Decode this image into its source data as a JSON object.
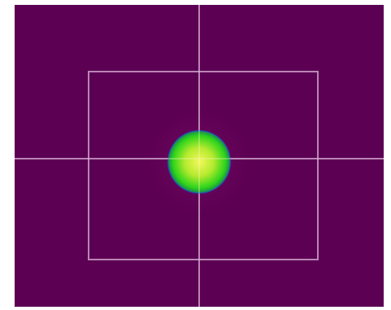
{
  "viewer": {
    "background_color": "#5c0054",
    "crosshair_color": "#d9b3d6",
    "roi_color": "#d9b3d6",
    "spot": {
      "core_color": "#e6f53a",
      "mid_color": "#33d61a",
      "edge_color": "#1f3bd1"
    }
  }
}
